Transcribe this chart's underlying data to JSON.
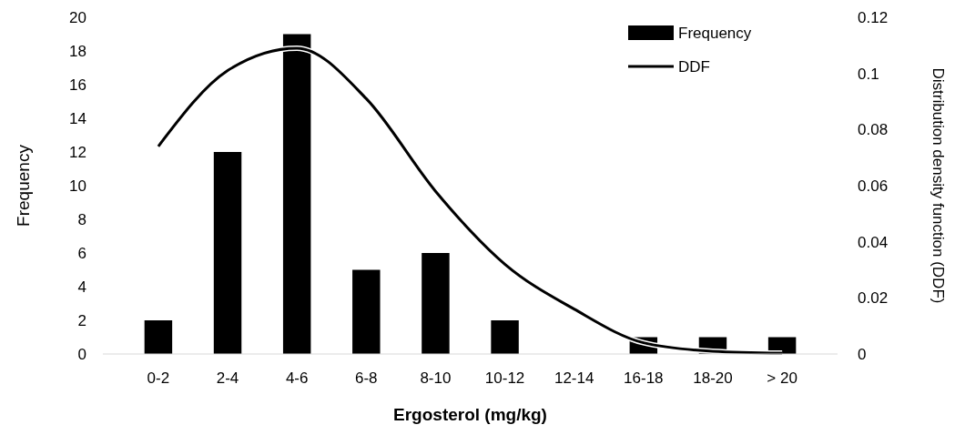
{
  "chart_data": {
    "type": "bar",
    "xlabel": "Ergosterol (mg/kg)",
    "ylabel": "Frequency",
    "y2label": "Distribution density function (DDF)",
    "categories": [
      "0-2",
      "2-4",
      "4-6",
      "6-8",
      "8-10",
      "10-12",
      "12-14",
      "16-18",
      "18-20",
      "> 20"
    ],
    "series": [
      {
        "name": "Frequency",
        "color": "#000000",
        "values": [
          2,
          12,
          19,
          5,
          6,
          2,
          0,
          1,
          1,
          1
        ]
      },
      {
        "name": "DDF",
        "type": "line",
        "axis": "y2",
        "color": "#000000",
        "values": [
          0.074,
          0.101,
          0.109,
          0.091,
          0.058,
          0.032,
          0.016,
          0.004,
          0.001,
          0.0003
        ]
      }
    ],
    "ylim": [
      0,
      20
    ],
    "yticks": [
      0,
      2,
      4,
      6,
      8,
      10,
      12,
      14,
      16,
      18,
      20
    ],
    "y2lim": [
      0,
      0.12
    ],
    "y2ticks": [
      0,
      0.02,
      0.04,
      0.06,
      {
        "value": 0.08,
        "label": "0.08"
      },
      {
        "value": 0.1,
        "label": "0.1"
      },
      {
        "value": 0.12,
        "label": "0.12"
      }
    ],
    "grid": false,
    "legend": "top right",
    "marker": "none",
    "line_style": "solid"
  }
}
